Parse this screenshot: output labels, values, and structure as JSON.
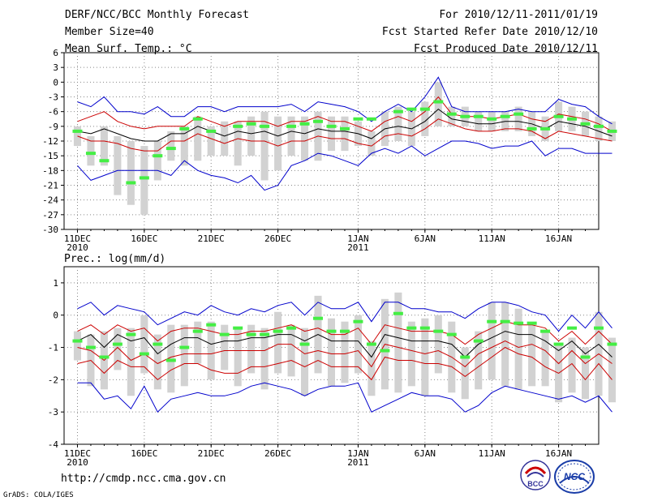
{
  "header": {
    "left": [
      "DERF/NCC/BCC Monthly Forecast",
      "Member Size=40",
      "Mean Surf. Temp.: °C"
    ],
    "right": [
      "For 2010/12/11-2011/01/19",
      "Fcst Started Refer Date 2010/12/10",
      "Fcst Produced Date 2010/12/11"
    ]
  },
  "footer": {
    "url": "http://cmdp.ncc.cma.gov.cn",
    "credit": "GrADS: COLA/IGES"
  },
  "logos": {
    "bcc_text": "BCC",
    "ncc_text": "NCC"
  },
  "colors": {
    "max_min": "#0000cc",
    "spread": "#cc0000",
    "mean": "#000000",
    "box": "#d2d2d2",
    "obs": "#44ee44"
  },
  "chart_data": [
    {
      "type": "line",
      "title": "Mean Surf. Temp.: °C",
      "xlabel": "",
      "ylabel": "",
      "ylim": [
        -30,
        6
      ],
      "yticks": [
        "6",
        "3",
        "0",
        "-3",
        "-6",
        "-9",
        "-12",
        "-15",
        "-18",
        "-21",
        "-24",
        "-27",
        "-30"
      ],
      "xticks": [
        {
          "day": 1,
          "label": "11DEC",
          "sub": "2010"
        },
        {
          "day": 6,
          "label": "16DEC",
          "sub": ""
        },
        {
          "day": 11,
          "label": "21DEC",
          "sub": ""
        },
        {
          "day": 16,
          "label": "26DEC",
          "sub": ""
        },
        {
          "day": 22,
          "label": "1JAN",
          "sub": "2011"
        },
        {
          "day": 27,
          "label": "6JAN",
          "sub": ""
        },
        {
          "day": 32,
          "label": "11JAN",
          "sub": ""
        },
        {
          "day": 37,
          "label": "16JAN",
          "sub": ""
        }
      ],
      "xrange": [
        0,
        40
      ],
      "series": [
        {
          "name": "max",
          "values": [
            -4,
            -5,
            -3,
            -6,
            -6,
            -6.5,
            -5,
            -7,
            -7,
            -5,
            -5,
            -6,
            -5,
            -5,
            -5,
            -5,
            -4.5,
            -6,
            -4,
            -4.5,
            -5,
            -6,
            -8,
            -6,
            -4.5,
            -6,
            -3,
            1,
            -5,
            -6,
            -6,
            -6,
            -6,
            -5.5,
            -6,
            -6,
            -3.5,
            -4.5,
            -5,
            -7,
            -8.5
          ]
        },
        {
          "name": "upper",
          "values": [
            -8,
            -7,
            -6,
            -8,
            -9,
            -9.5,
            -9,
            -9,
            -9,
            -7,
            -8,
            -9,
            -8,
            -8,
            -8,
            -9,
            -8,
            -8,
            -7,
            -8,
            -8,
            -9,
            -10,
            -8,
            -7,
            -8,
            -6,
            -3,
            -6.5,
            -7,
            -7,
            -7.5,
            -7,
            -6.5,
            -7.5,
            -8,
            -6.5,
            -7,
            -7.5,
            -8.5,
            -10
          ]
        },
        {
          "name": "mean",
          "values": [
            -10,
            -10.5,
            -9.5,
            -10.5,
            -11.5,
            -12,
            -12,
            -10.5,
            -10.5,
            -9,
            -10,
            -11,
            -10,
            -10.5,
            -10,
            -11,
            -10,
            -10.5,
            -9.5,
            -10,
            -10,
            -10.5,
            -11.5,
            -9.5,
            -9,
            -9.5,
            -8,
            -5.5,
            -7.5,
            -8,
            -8.5,
            -8.5,
            -8,
            -8,
            -8.5,
            -9.5,
            -8,
            -8.5,
            -9,
            -10,
            -11
          ]
        },
        {
          "name": "lower",
          "values": [
            -11,
            -12,
            -12,
            -12.5,
            -13.5,
            -14,
            -14,
            -12,
            -12,
            -10.5,
            -11.5,
            -12.5,
            -11.5,
            -12,
            -12,
            -13,
            -12,
            -12,
            -11,
            -11.5,
            -11.5,
            -12.5,
            -13,
            -11,
            -10.5,
            -11,
            -9.5,
            -7.5,
            -8.5,
            -9.5,
            -10,
            -10,
            -9.5,
            -9.5,
            -10,
            -11.5,
            -10,
            -10.5,
            -11,
            -11.5,
            -12
          ]
        },
        {
          "name": "min",
          "values": [
            -17,
            -20,
            -19,
            -18,
            -18,
            -18,
            -18,
            -19,
            -16,
            -18,
            -19,
            -19.5,
            -20.5,
            -19,
            -22,
            -21,
            -17,
            -16,
            -14.5,
            -15,
            -16,
            -17,
            -14.5,
            -13.5,
            -14.5,
            -13,
            -15,
            -13.5,
            -12,
            -12,
            -12.5,
            -13.5,
            -13,
            -13,
            -12,
            -15,
            -13.5,
            -13.5,
            -14.5,
            -14.5,
            -14.5
          ]
        }
      ],
      "boxes": [
        [
          -13,
          -9
        ],
        [
          -17,
          -11
        ],
        [
          -17,
          -9
        ],
        [
          -23,
          -11
        ],
        [
          -25,
          -12
        ],
        [
          -27,
          -13
        ],
        [
          -20,
          -12
        ],
        [
          -16,
          -10
        ],
        [
          -17,
          -9
        ],
        [
          -16,
          -7
        ],
        [
          -15,
          -9
        ],
        [
          -15,
          -8
        ],
        [
          -17,
          -8
        ],
        [
          -15,
          -7
        ],
        [
          -20,
          -6
        ],
        [
          -18,
          -7
        ],
        [
          -15,
          -7
        ],
        [
          -16,
          -7
        ],
        [
          -16,
          -6
        ],
        [
          -14,
          -7
        ],
        [
          -14,
          -7
        ],
        [
          -13,
          -8
        ],
        [
          -15,
          -10
        ],
        [
          -13,
          -6
        ],
        [
          -12,
          -5
        ],
        [
          -13,
          -6
        ],
        [
          -11,
          -4
        ],
        [
          -9,
          0
        ],
        [
          -9,
          -5
        ],
        [
          -9,
          -5
        ],
        [
          -10,
          -6
        ],
        [
          -10,
          -6
        ],
        [
          -10,
          -6
        ],
        [
          -10,
          -5
        ],
        [
          -11,
          -6
        ],
        [
          -12,
          -7
        ],
        [
          -10,
          -4
        ],
        [
          -10,
          -5
        ],
        [
          -11,
          -6
        ],
        [
          -12,
          -7
        ],
        [
          -12,
          -8
        ]
      ],
      "observed": [
        -10,
        -14.5,
        -16,
        null,
        -20.5,
        -19.5,
        -15,
        -13.5,
        -9.5,
        -7.5,
        -10,
        null,
        -9,
        -8.5,
        -9,
        null,
        -9,
        -8.5,
        -8,
        -9,
        -9.5,
        -7.5,
        -7.5,
        null,
        -6,
        -5.5,
        -5.5,
        -4,
        -6.5,
        -7,
        -7,
        -7.5,
        -7,
        -6.5,
        -9.5,
        -9.5,
        -7,
        -7.5,
        -8.5,
        -9,
        -10
      ]
    },
    {
      "type": "line",
      "title": "Prec.: log(mm/d)",
      "xlabel": "",
      "ylabel": "",
      "ylim": [
        -4,
        1.5
      ],
      "yticks": [
        "1",
        "0",
        "-1",
        "-2",
        "-3",
        "-4"
      ],
      "xticks": [
        {
          "day": 1,
          "label": "11DEC",
          "sub": "2010"
        },
        {
          "day": 6,
          "label": "16DEC",
          "sub": ""
        },
        {
          "day": 11,
          "label": "21DEC",
          "sub": ""
        },
        {
          "day": 16,
          "label": "26DEC",
          "sub": ""
        },
        {
          "day": 22,
          "label": "1JAN",
          "sub": "2011"
        },
        {
          "day": 27,
          "label": "6JAN",
          "sub": ""
        },
        {
          "day": 32,
          "label": "11JAN",
          "sub": ""
        },
        {
          "day": 37,
          "label": "16JAN",
          "sub": ""
        }
      ],
      "xrange": [
        0,
        40
      ],
      "series": [
        {
          "name": "max",
          "values": [
            0.2,
            0.4,
            0,
            0.3,
            0.2,
            0.1,
            -0.3,
            -0.1,
            0.1,
            0,
            0.3,
            0.1,
            0,
            0.2,
            0.1,
            0.3,
            0.4,
            0,
            0.4,
            0.2,
            0.2,
            0.4,
            -0.2,
            0.4,
            0.4,
            0.2,
            0.2,
            0.1,
            0.1,
            -0.1,
            0.2,
            0.4,
            0.4,
            0.3,
            0.1,
            0,
            -0.5,
            0,
            -0.4,
            0.1,
            -0.4
          ]
        },
        {
          "name": "upper",
          "values": [
            -0.5,
            -0.3,
            -0.6,
            -0.3,
            -0.5,
            -0.4,
            -0.8,
            -0.5,
            -0.4,
            -0.4,
            -0.5,
            -0.6,
            -0.6,
            -0.5,
            -0.5,
            -0.4,
            -0.3,
            -0.5,
            -0.4,
            -0.6,
            -0.6,
            -0.4,
            -0.9,
            -0.3,
            -0.4,
            -0.5,
            -0.5,
            -0.5,
            -0.6,
            -0.9,
            -0.6,
            -0.4,
            -0.2,
            -0.3,
            -0.3,
            -0.4,
            -0.8,
            -0.5,
            -0.9,
            -0.5,
            -0.9
          ]
        },
        {
          "name": "mean",
          "values": [
            -0.8,
            -0.6,
            -1,
            -0.6,
            -0.8,
            -0.7,
            -1.2,
            -0.9,
            -0.7,
            -0.7,
            -0.9,
            -0.8,
            -0.8,
            -0.7,
            -0.7,
            -0.6,
            -0.6,
            -0.8,
            -0.6,
            -0.8,
            -0.8,
            -0.8,
            -1.3,
            -0.6,
            -0.7,
            -0.8,
            -0.8,
            -0.8,
            -0.9,
            -1.3,
            -0.9,
            -0.7,
            -0.5,
            -0.6,
            -0.6,
            -0.8,
            -1.1,
            -0.8,
            -1.2,
            -0.9,
            -1.3
          ]
        },
        {
          "name": "lower",
          "values": [
            -1,
            -1.1,
            -1.4,
            -1,
            -1.4,
            -1.2,
            -1.5,
            -1.3,
            -1.2,
            -1.2,
            -1.2,
            -1.1,
            -1.1,
            -1.1,
            -1.1,
            -0.9,
            -0.9,
            -1.2,
            -1.1,
            -1.2,
            -1.2,
            -1.1,
            -1.6,
            -0.9,
            -1,
            -1.1,
            -1.2,
            -1.1,
            -1.3,
            -1.6,
            -1.2,
            -1,
            -0.8,
            -1,
            -0.9,
            -1.1,
            -1.5,
            -1.1,
            -1.5,
            -1.2,
            -1.5
          ]
        },
        {
          "name": "lower2",
          "values": [
            -1.5,
            -1.4,
            -1.8,
            -1.4,
            -1.6,
            -1.6,
            -2,
            -1.7,
            -1.5,
            -1.5,
            -1.7,
            -1.8,
            -1.8,
            -1.6,
            -1.6,
            -1.5,
            -1.4,
            -1.6,
            -1.4,
            -1.6,
            -1.6,
            -1.6,
            -2,
            -1.3,
            -1.4,
            -1.4,
            -1.5,
            -1.5,
            -1.6,
            -1.9,
            -1.6,
            -1.3,
            -1,
            -1.2,
            -1.3,
            -1.6,
            -1.8,
            -1.5,
            -2,
            -1.5,
            -2
          ]
        },
        {
          "name": "min",
          "values": [
            -2.1,
            -2.1,
            -2.6,
            -2.5,
            -2.9,
            -2.2,
            -3,
            -2.6,
            -2.5,
            -2.4,
            -2.5,
            -2.5,
            -2.4,
            -2.2,
            -2.1,
            -2.2,
            -2.3,
            -2.5,
            -2.3,
            -2.2,
            -2.2,
            -2.1,
            -3,
            -2.8,
            -2.6,
            -2.4,
            -2.5,
            -2.5,
            -2.6,
            -3,
            -2.8,
            -2.4,
            -2.2,
            -2.3,
            -2.4,
            -2.5,
            -2.6,
            -2.5,
            -2.7,
            -2.5,
            -3
          ]
        },
        {
          "name": "zero",
          "values": [
            -0.6,
            -0.9,
            -1.2,
            -0.7,
            -1,
            -0.9,
            -1.4,
            -1.1,
            -0.9,
            -0.9,
            -1,
            -0.9,
            -0.9,
            -0.8,
            -0.8,
            -0.7,
            -0.7,
            -0.9,
            -0.8,
            -1,
            -1,
            -0.9,
            -1.4,
            -0.7,
            -0.8,
            -0.9,
            -1,
            -0.9,
            -1,
            -1.4,
            -1,
            -0.8,
            -0.6,
            -0.8,
            -0.7,
            -0.9,
            -1.3,
            -0.9,
            -1.3,
            -1,
            -1.4
          ]
        }
      ],
      "boxes": [
        [
          -1.4,
          -0.5
        ],
        [
          -2.2,
          -0.6
        ],
        [
          -2.3,
          -0.5
        ],
        [
          -1.7,
          -0.4
        ],
        [
          -2.5,
          -0.4
        ],
        [
          -1.8,
          0
        ],
        [
          -2.3,
          -0.6
        ],
        [
          -2.4,
          -0.3
        ],
        [
          -2.2,
          -0.3
        ],
        [
          -1.5,
          -0.2
        ],
        [
          -2,
          -0.2
        ],
        [
          -1.7,
          -0.3
        ],
        [
          -2.2,
          -0.4
        ],
        [
          -1.8,
          -0.3
        ],
        [
          -2.3,
          -0.4
        ],
        [
          -1.8,
          0.1
        ],
        [
          -1.9,
          -0.3
        ],
        [
          -2.5,
          -0.4
        ],
        [
          -1.8,
          0.6
        ],
        [
          -2.2,
          -0.1
        ],
        [
          -2.1,
          -0.2
        ],
        [
          -1.8,
          0
        ],
        [
          -2.5,
          -0.8
        ],
        [
          -2.3,
          0.5
        ],
        [
          -2.4,
          0.7
        ],
        [
          -2.2,
          -0.2
        ],
        [
          -2.5,
          -0.1
        ],
        [
          -1.8,
          0
        ],
        [
          -2.4,
          -0.2
        ],
        [
          -2.6,
          -1
        ],
        [
          -2.3,
          -0.5
        ],
        [
          -2,
          0.4
        ],
        [
          -2.2,
          0.4
        ],
        [
          -2.3,
          0.2
        ],
        [
          -2.2,
          -0.3
        ],
        [
          -2.2,
          -0.5
        ],
        [
          -2.7,
          -0.9
        ],
        [
          -2.4,
          -0.7
        ],
        [
          -2.6,
          -1
        ],
        [
          -2.5,
          0.1
        ],
        [
          -2.7,
          -0.7
        ]
      ],
      "observed": [
        -0.8,
        -1,
        -1.3,
        -0.9,
        -0.6,
        -1.2,
        -0.9,
        -1.4,
        -1,
        -0.5,
        -0.3,
        -0.6,
        -0.4,
        -0.6,
        -0.6,
        -0.5,
        -0.4,
        -0.9,
        -0.1,
        -0.5,
        -0.5,
        -0.2,
        -0.9,
        -1.1,
        0.05,
        -0.4,
        -0.4,
        -0.5,
        -0.6,
        -1.3,
        -0.8,
        -0.2,
        -0.2,
        -0.25,
        -0.25,
        -0.5,
        -0.9,
        -0.4,
        -1.3,
        -0.4,
        -0.9
      ]
    }
  ]
}
